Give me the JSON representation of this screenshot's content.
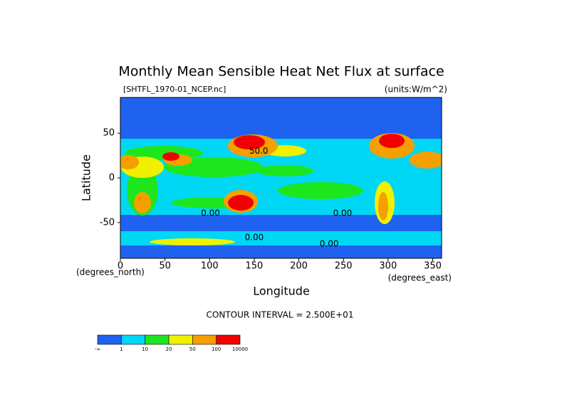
{
  "chart_data": {
    "type": "contour_map",
    "title": "Monthly Mean Sensible Heat Net Flux at surface",
    "subtitle": "[SHTFL_1970-01_NCEP.nc]",
    "units": "(units:W/m^2)",
    "x_label": "Longitude",
    "y_label": "Latitude",
    "x_unit": "(degrees_east)",
    "y_unit": "(degrees_north)",
    "xlim": [
      0,
      360
    ],
    "ylim": [
      -90,
      90
    ],
    "xticks": [
      0,
      50,
      100,
      150,
      200,
      250,
      300,
      350
    ],
    "yticks": [
      -50,
      0,
      50
    ],
    "contour_interval": "CONTOUR INTERVAL = 2.500E+01",
    "contour_labels": [
      {
        "text": "50.0",
        "x": 155,
        "y": 30
      },
      {
        "text": "0.00",
        "x": 101,
        "y": -40
      },
      {
        "text": "0.00",
        "x": 249,
        "y": -40
      },
      {
        "text": "0.00",
        "x": 150,
        "y": -67
      },
      {
        "text": "0.00",
        "x": 234,
        "y": -74
      }
    ],
    "colorbar": {
      "colors": [
        "#1f62f0",
        "#00d7f5",
        "#1ee61e",
        "#f0f000",
        "#f5a000",
        "#f00000"
      ],
      "labels": [
        "-∞",
        "1",
        "10",
        "20",
        "50",
        "100",
        "10000"
      ]
    }
  }
}
